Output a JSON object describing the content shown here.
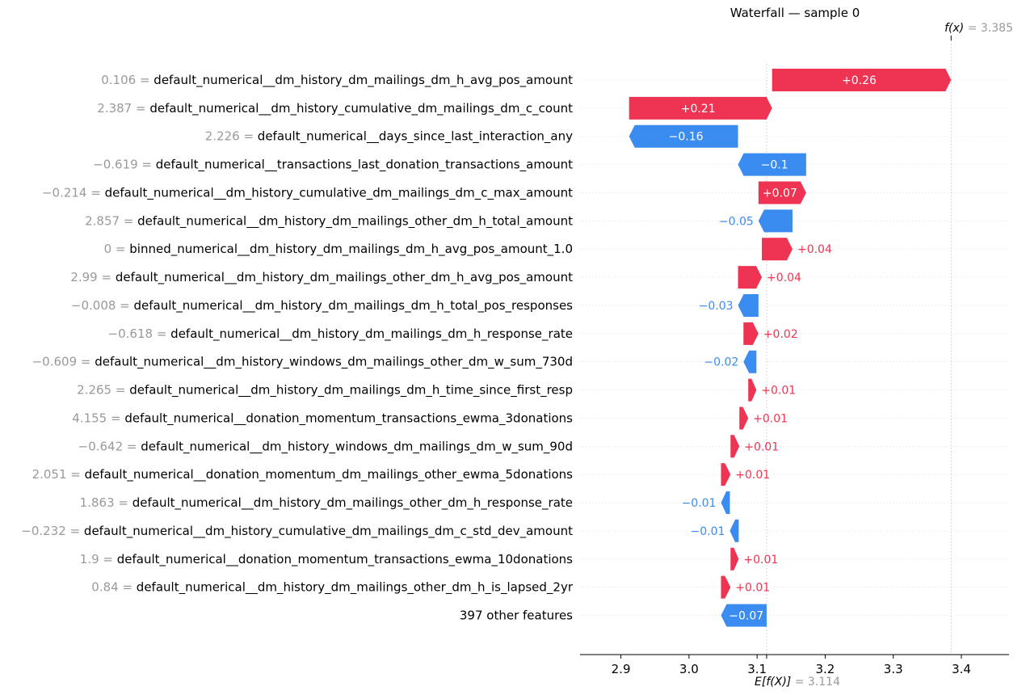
{
  "chart_data": {
    "type": "waterfall",
    "title": "Waterfall — sample 0",
    "fx_label": "f(x)",
    "fx_value": "3.385",
    "ex_label": "E[f(X)]",
    "ex_value": "3.114",
    "base_value": 3.114,
    "final_value": 3.385,
    "xlim": [
      2.84,
      3.47
    ],
    "xticks": [
      2.9,
      3.0,
      3.1,
      3.2,
      3.3,
      3.4
    ],
    "xtick_labels": [
      "2.9",
      "3.0",
      "3.1",
      "3.2",
      "3.3",
      "3.4"
    ],
    "positive_color": "#ee3452",
    "negative_color": "#3b8cf0",
    "features": [
      {
        "value": "0.106",
        "name": "default_numerical__dm_history_dm_mailings_dm_h_avg_pos_amount",
        "start": 3.122,
        "end": 3.385,
        "label": "+0.26"
      },
      {
        "value": "2.387",
        "name": "default_numerical__dm_history_cumulative_dm_mailings_dm_c_count",
        "start": 2.912,
        "end": 3.122,
        "label": "+0.21"
      },
      {
        "value": "2.226",
        "name": "default_numerical__days_since_last_interaction_any",
        "start": 3.072,
        "end": 2.912,
        "label": "−0.16"
      },
      {
        "value": "−0.619",
        "name": "default_numerical__transactions_last_donation_transactions_amount",
        "start": 3.172,
        "end": 3.072,
        "label": "−0.1"
      },
      {
        "value": "−0.214",
        "name": "default_numerical__dm_history_cumulative_dm_mailings_dm_c_max_amount",
        "start": 3.102,
        "end": 3.172,
        "label": "+0.07"
      },
      {
        "value": "2.857",
        "name": "default_numerical__dm_history_dm_mailings_other_dm_h_total_amount",
        "start": 3.152,
        "end": 3.102,
        "label": "−0.05"
      },
      {
        "value": "0",
        "name": "binned_numerical__dm_history_dm_mailings_dm_h_avg_pos_amount_1.0",
        "start": 3.107,
        "end": 3.152,
        "label": "+0.04"
      },
      {
        "value": "2.99",
        "name": "default_numerical__dm_history_dm_mailings_other_dm_h_avg_pos_amount",
        "start": 3.072,
        "end": 3.107,
        "label": "+0.04"
      },
      {
        "value": "−0.008",
        "name": "default_numerical__dm_history_dm_mailings_dm_h_total_pos_responses",
        "start": 3.102,
        "end": 3.072,
        "label": "−0.03"
      },
      {
        "value": "−0.618",
        "name": "default_numerical__dm_history_dm_mailings_dm_h_response_rate",
        "start": 3.08,
        "end": 3.102,
        "label": "+0.02"
      },
      {
        "value": "−0.609",
        "name": "default_numerical__dm_history_windows_dm_mailings_other_dm_w_sum_730d",
        "start": 3.099,
        "end": 3.08,
        "label": "−0.02"
      },
      {
        "value": "2.265",
        "name": "default_numerical__dm_history_dm_mailings_dm_h_time_since_first_resp",
        "start": 3.087,
        "end": 3.099,
        "label": "+0.01"
      },
      {
        "value": "4.155",
        "name": "default_numerical__donation_momentum_transactions_ewma_3donations",
        "start": 3.074,
        "end": 3.087,
        "label": "+0.01"
      },
      {
        "value": "−0.642",
        "name": "default_numerical__dm_history_windows_dm_mailings_dm_w_sum_90d",
        "start": 3.061,
        "end": 3.074,
        "label": "+0.01"
      },
      {
        "value": "2.051",
        "name": "default_numerical__donation_momentum_dm_mailings_other_ewma_5donations",
        "start": 3.047,
        "end": 3.061,
        "label": "+0.01"
      },
      {
        "value": "1.863",
        "name": "default_numerical__dm_history_dm_mailings_other_dm_h_response_rate",
        "start": 3.06,
        "end": 3.047,
        "label": "−0.01"
      },
      {
        "value": "−0.232",
        "name": "default_numerical__dm_history_cumulative_dm_mailings_dm_c_std_dev_amount",
        "start": 3.073,
        "end": 3.06,
        "label": "−0.01"
      },
      {
        "value": "1.9",
        "name": "default_numerical__donation_momentum_transactions_ewma_10donations",
        "start": 3.061,
        "end": 3.073,
        "label": "+0.01"
      },
      {
        "value": "0.84",
        "name": "default_numerical__dm_history_dm_mailings_other_dm_h_is_lapsed_2yr",
        "start": 3.047,
        "end": 3.061,
        "label": "+0.01"
      },
      {
        "value": "",
        "name": "397 other features",
        "start": 3.114,
        "end": 3.047,
        "label": "−0.07"
      }
    ]
  }
}
